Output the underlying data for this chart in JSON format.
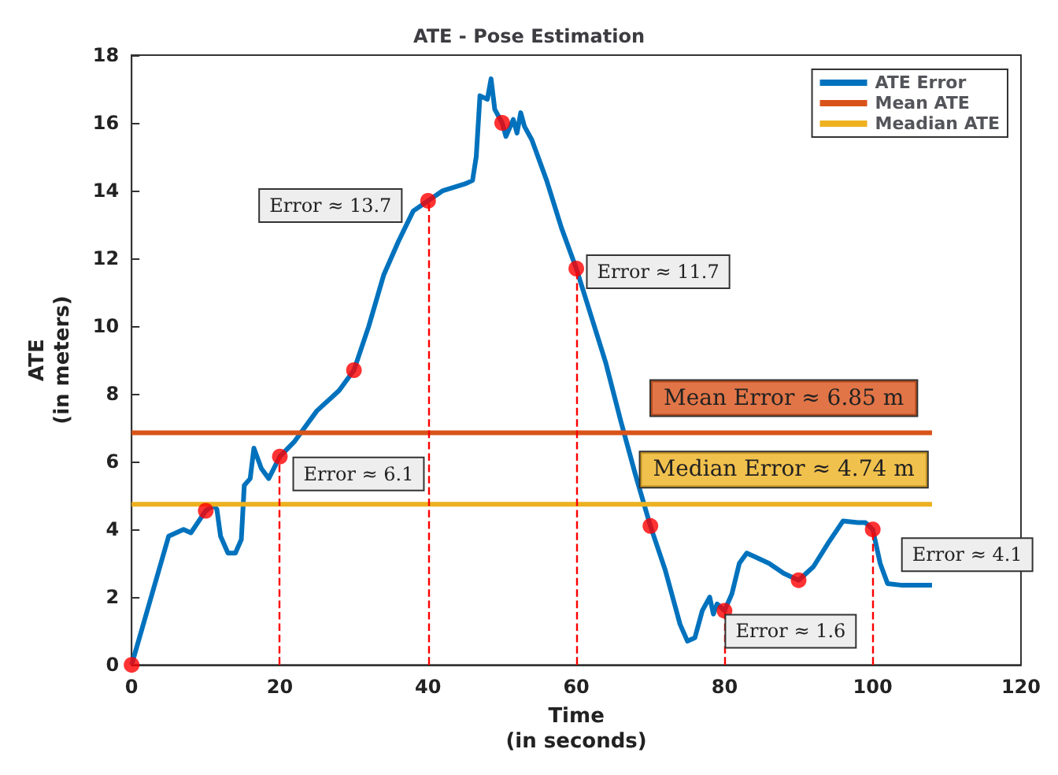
{
  "chart_data": {
    "type": "line",
    "title": "ATE - Pose Estimation",
    "xlabel": "Time\n(in seconds)",
    "ylabel": "ATE\n(in meters)",
    "xlim": [
      0,
      120
    ],
    "xticks": [
      0,
      20,
      40,
      60,
      80,
      100,
      120
    ],
    "ylim": [
      0,
      18
    ],
    "yticks": [
      0,
      2,
      4,
      6,
      8,
      10,
      12,
      14,
      16,
      18
    ],
    "grid": false,
    "legend": "top right",
    "series": [
      {
        "name": "ATE Error",
        "color": "#0072bd",
        "x": [
          0,
          5,
          7,
          8,
          10,
          11,
          11.5,
          12,
          13,
          14,
          14.8,
          15.2,
          16,
          16.5,
          17.5,
          18.5,
          20,
          22,
          25,
          27,
          28,
          30,
          32,
          34,
          36,
          38,
          40,
          42,
          45,
          46,
          46.5,
          47,
          48,
          48.5,
          49,
          50,
          50.5,
          51.5,
          52,
          52.5,
          53,
          54,
          56,
          58,
          60,
          62,
          64,
          66,
          68,
          70,
          72,
          74,
          75,
          76,
          77,
          78,
          78.5,
          79,
          80,
          81,
          82,
          83,
          84,
          86,
          88,
          90,
          92,
          94,
          96,
          98,
          99,
          100,
          101,
          102,
          104,
          108
        ],
        "values": [
          0,
          3.8,
          4.0,
          3.9,
          4.55,
          4.7,
          4.6,
          3.8,
          3.3,
          3.3,
          3.7,
          5.3,
          5.5,
          6.4,
          5.8,
          5.5,
          6.15,
          6.6,
          7.5,
          7.9,
          8.1,
          8.7,
          10.0,
          11.5,
          12.5,
          13.4,
          13.7,
          14.0,
          14.2,
          14.3,
          15.0,
          16.8,
          16.7,
          17.3,
          16.4,
          16.0,
          15.6,
          16.1,
          15.7,
          16.3,
          15.9,
          15.5,
          14.3,
          12.9,
          11.7,
          10.3,
          8.9,
          7.2,
          5.6,
          4.1,
          2.8,
          1.2,
          0.7,
          0.8,
          1.6,
          2.0,
          1.5,
          1.8,
          1.6,
          2.1,
          3.0,
          3.3,
          3.2,
          3.0,
          2.7,
          2.5,
          2.9,
          3.6,
          4.25,
          4.2,
          4.2,
          4.0,
          3.0,
          2.4,
          2.35,
          2.35
        ]
      },
      {
        "type": "scatter",
        "color": "#ff0000",
        "x": [
          0,
          10,
          20,
          30,
          40,
          50,
          60,
          70,
          80,
          90,
          100
        ],
        "values": [
          0,
          4.55,
          6.15,
          8.7,
          13.7,
          16.0,
          11.7,
          4.1,
          1.6,
          2.5,
          4.0
        ]
      },
      {
        "name": "Mean ATE",
        "color": "#d95319",
        "x": [
          0,
          108
        ],
        "values": [
          6.85,
          6.85
        ]
      },
      {
        "name": "Meadian ATE",
        "color": "#edb120",
        "x": [
          0,
          108
        ],
        "values": [
          4.74,
          4.74
        ]
      }
    ],
    "ref_lines": [
      {
        "axis": "x",
        "value": 20,
        "color": "#ff0000",
        "line_style": "dashed"
      },
      {
        "axis": "x",
        "value": 40,
        "color": "#ff0000",
        "line_style": "dashed"
      },
      {
        "axis": "x",
        "value": 60,
        "color": "#ff0000",
        "line_style": "dashed"
      },
      {
        "axis": "x",
        "value": 80,
        "color": "#ff0000",
        "line_style": "dashed"
      },
      {
        "axis": "x",
        "value": 100,
        "color": "#ff0000",
        "line_style": "dashed"
      }
    ],
    "annotations": [
      {
        "text": "Error ≈ 13.7",
        "x": 40,
        "y": 13.7
      },
      {
        "text": "Error ≈ 6.1",
        "x": 20,
        "y": 6.15
      },
      {
        "text": "Error ≈ 11.7",
        "x": 60,
        "y": 11.7
      },
      {
        "text": "Error ≈ 1.6",
        "x": 80,
        "y": 1.6
      },
      {
        "text": "Error ≈ 4.1",
        "x": 100,
        "y": 4.0
      },
      {
        "text": "Mean Error ≈ 6.85 m",
        "x": 88,
        "y": 6.85
      },
      {
        "text": "Median Error ≈ 4.74 m",
        "x": 88,
        "y": 4.74
      }
    ]
  }
}
